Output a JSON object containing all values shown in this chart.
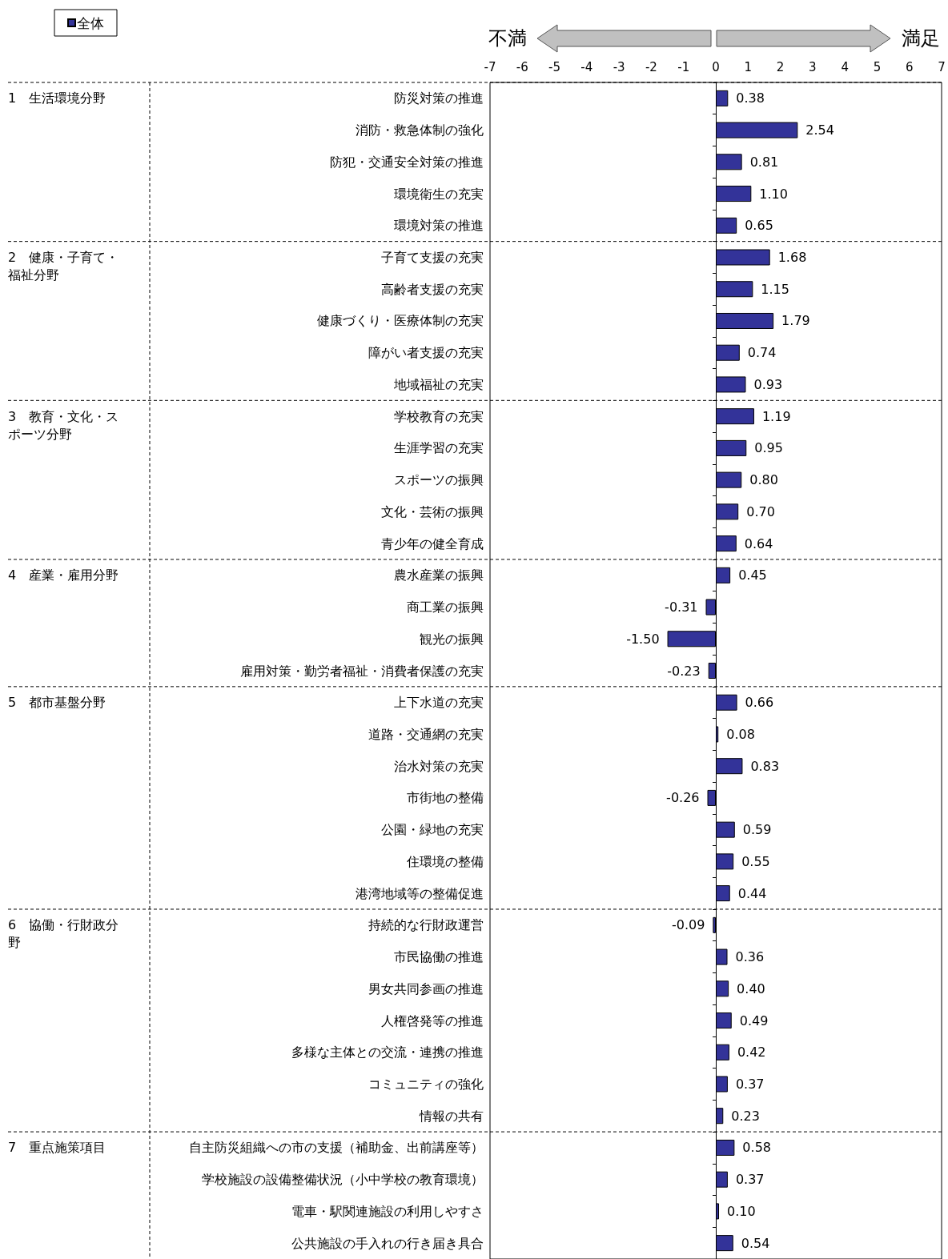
{
  "chart_data": {
    "type": "bar",
    "orientation": "horizontal",
    "legend": "top left",
    "grid": false,
    "categories": [
      "防災対策の推進",
      "消防・救急体制の強化",
      "防犯・交通安全対策の推進",
      "環境衛生の充実",
      "環境対策の推進",
      "子育て支援の充実",
      "高齢者支援の充実",
      "健康づくり・医療体制の充実",
      "障がい者支援の充実",
      "地域福祉の充実",
      "学校教育の充実",
      "生涯学習の充実",
      "スポーツの振興",
      "文化・芸術の振興",
      "青少年の健全育成",
      "農水産業の振興",
      "商工業の振興",
      "観光の振興",
      "雇用対策・勤労者福祉・消費者保護の充実",
      "上下水道の充実",
      "道路・交通網の充実",
      "治水対策の充実",
      "市街地の整備",
      "公園・緑地の充実",
      "住環境の整備",
      "港湾地域等の整備促進",
      "持続的な行財政運営",
      "市民協働の推進",
      "男女共同参画の推進",
      "人権啓発等の推進",
      "多様な主体との交流・連携の推進",
      "コミュニティの強化",
      "情報の共有",
      "自主防災組織への市の支援（補助金、出前講座等）",
      "学校施設の設備整備状況（小中学校の教育環境）",
      "電車・駅関連施設の利用しやすさ",
      "公共施設の手入れの行き届き具合"
    ],
    "series": [
      {
        "name": "全体",
        "color": "#333399",
        "values": [
          0.38,
          2.54,
          0.81,
          1.1,
          0.65,
          1.68,
          1.15,
          1.79,
          0.74,
          0.93,
          1.19,
          0.95,
          0.8,
          0.7,
          0.64,
          0.45,
          -0.31,
          -1.5,
          -0.23,
          0.66,
          0.08,
          0.83,
          -0.26,
          0.59,
          0.55,
          0.44,
          -0.09,
          0.36,
          0.4,
          0.49,
          0.42,
          0.37,
          0.23,
          0.58,
          0.37,
          0.1,
          0.54
        ],
        "value_labels": [
          "0.38",
          "2.54",
          "0.81",
          "1.10",
          "0.65",
          "1.68",
          "1.15",
          "1.79",
          "0.74",
          "0.93",
          "1.19",
          "0.95",
          "0.80",
          "0.70",
          "0.64",
          "0.45",
          "-0.31",
          "-1.50",
          "-0.23",
          "0.66",
          "0.08",
          "0.83",
          "-0.26",
          "0.59",
          "0.55",
          "0.44",
          "-0.09",
          "0.36",
          "0.40",
          "0.49",
          "0.42",
          "0.37",
          "0.23",
          "0.58",
          "0.37",
          "0.10",
          "0.54"
        ]
      }
    ],
    "xlim": [
      -7,
      7
    ],
    "xticks": [
      -7,
      -6,
      -5,
      -4,
      -3,
      -2,
      -1,
      0,
      1,
      2,
      3,
      4,
      5,
      6,
      7
    ],
    "annotations": [
      "不満",
      "満足",
      "1　生活環境分野",
      "2　健康・子育て・福祉分野",
      "3　教育・文化・スポーツ分野",
      "4　産業・雇用分野",
      "5　都市基盤分野",
      "6　協働・行財政分野",
      "7　重点施策項目"
    ]
  }
}
